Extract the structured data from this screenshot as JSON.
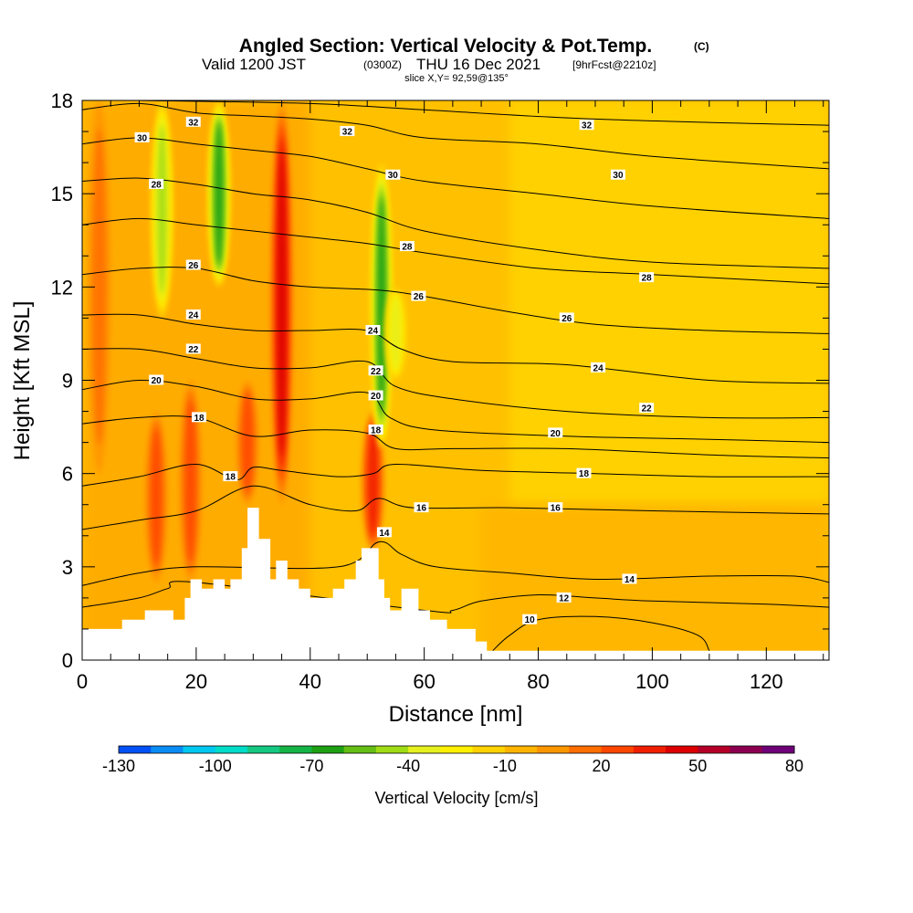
{
  "title": {
    "main": "Angled Section: Vertical Velocity & Pot.Temp.",
    "main_suffix": "(C)",
    "valid_prefix": "Valid 1200 JST",
    "valid_utc": "(0300Z)",
    "valid_date": "THU 16 Dec 2021",
    "forecast": "[9hrFcst@2210z]",
    "slice": "slice X,Y= 92,59@135°"
  },
  "chart_data": {
    "type": "heatmap",
    "xlabel": "Distance [nm]",
    "ylabel": "Height [Kft MSL]",
    "xlim": [
      0,
      131
    ],
    "ylim": [
      0,
      18
    ],
    "x_ticks": [
      0,
      20,
      40,
      60,
      80,
      100,
      120
    ],
    "y_ticks": [
      0,
      3,
      6,
      9,
      12,
      15,
      18
    ],
    "colorbar": {
      "label": "Vertical Velocity [cm/s]",
      "range": [
        -130,
        80
      ],
      "step": 10,
      "tick_values": [
        -130,
        -100,
        -70,
        -40,
        -10,
        20,
        50,
        80
      ],
      "colors": [
        "#0000f5",
        "#0050f5",
        "#0a8cf5",
        "#00c8f0",
        "#00dcc8",
        "#14c882",
        "#14b446",
        "#1ea014",
        "#64be14",
        "#a0dc14",
        "#e6f01e",
        "#fff000",
        "#ffd200",
        "#ffb400",
        "#ff9600",
        "#ff6e00",
        "#ff4600",
        "#f01e00",
        "#dc0000",
        "#b40028",
        "#8c0050",
        "#6e0078",
        "#50008c"
      ]
    },
    "terrain_kft": [
      [
        0,
        1.0
      ],
      [
        7,
        1.0
      ],
      [
        7,
        1.3
      ],
      [
        11,
        1.3
      ],
      [
        11,
        1.6
      ],
      [
        16,
        1.6
      ],
      [
        16,
        1.3
      ],
      [
        18,
        1.3
      ],
      [
        18,
        2.0
      ],
      [
        19,
        2.0
      ],
      [
        19,
        2.6
      ],
      [
        21,
        2.6
      ],
      [
        21,
        2.3
      ],
      [
        23,
        2.3
      ],
      [
        23,
        2.6
      ],
      [
        25,
        2.6
      ],
      [
        25,
        2.3
      ],
      [
        26,
        2.3
      ],
      [
        26,
        2.6
      ],
      [
        28,
        2.6
      ],
      [
        28,
        3.6
      ],
      [
        29,
        3.6
      ],
      [
        29,
        4.9
      ],
      [
        31,
        4.9
      ],
      [
        31,
        3.9
      ],
      [
        33,
        3.9
      ],
      [
        33,
        2.6
      ],
      [
        34,
        2.6
      ],
      [
        34,
        3.2
      ],
      [
        36,
        3.2
      ],
      [
        36,
        2.6
      ],
      [
        38,
        2.6
      ],
      [
        38,
        2.3
      ],
      [
        40,
        2.3
      ],
      [
        40,
        2.0
      ],
      [
        44,
        2.0
      ],
      [
        44,
        2.3
      ],
      [
        46,
        2.3
      ],
      [
        46,
        2.6
      ],
      [
        48,
        2.6
      ],
      [
        48,
        3.2
      ],
      [
        49,
        3.2
      ],
      [
        49,
        3.6
      ],
      [
        52,
        3.6
      ],
      [
        52,
        2.6
      ],
      [
        53,
        2.6
      ],
      [
        53,
        2.0
      ],
      [
        54,
        2.0
      ],
      [
        54,
        1.6
      ],
      [
        56,
        1.6
      ],
      [
        56,
        2.3
      ],
      [
        59,
        2.3
      ],
      [
        59,
        1.6
      ],
      [
        61,
        1.6
      ],
      [
        61,
        1.3
      ],
      [
        64,
        1.3
      ],
      [
        64,
        1.0
      ],
      [
        69,
        1.0
      ],
      [
        69,
        0.6
      ],
      [
        71,
        0.6
      ],
      [
        71,
        0.3
      ],
      [
        131,
        0.3
      ]
    ],
    "updraft_bands": [
      {
        "x": 13,
        "top": 8,
        "bottom": 2.5,
        "strength": 30
      },
      {
        "x": 19,
        "top": 9,
        "bottom": 2.5,
        "strength": 25
      },
      {
        "x": 29,
        "top": 9,
        "bottom": 5,
        "strength": 30
      },
      {
        "x": 35,
        "top": 18,
        "bottom": 5,
        "strength": 45
      },
      {
        "x": 51,
        "top": 8,
        "bottom": 3.5,
        "strength": 35
      },
      {
        "x": 3,
        "top": 18,
        "bottom": 6,
        "strength": 20
      }
    ],
    "downdraft_bands": [
      {
        "x": 14,
        "top": 18,
        "bottom": 11,
        "strength": -40
      },
      {
        "x": 24,
        "top": 18,
        "bottom": 12,
        "strength": -55
      },
      {
        "x": 52.5,
        "top": 16,
        "bottom": 6.8,
        "strength": -60
      },
      {
        "x": 55,
        "top": 12,
        "bottom": 9,
        "strength": -30
      }
    ],
    "theta_contours": [
      {
        "value": 10,
        "label": "10",
        "points": [
          [
            72,
            0.3
          ],
          [
            75,
            0.8
          ],
          [
            80,
            1.3
          ],
          [
            90,
            1.4
          ],
          [
            100,
            1.2
          ],
          [
            108,
            0.8
          ],
          [
            110,
            0.3
          ]
        ]
      },
      {
        "value": 12,
        "label": "12",
        "points": [
          [
            0,
            1.7
          ],
          [
            10,
            2.0
          ],
          [
            15,
            2.3
          ],
          [
            20,
            2.5
          ],
          [
            60,
            1.6
          ],
          [
            65,
            1.6
          ],
          [
            70,
            1.9
          ],
          [
            80,
            2.1
          ],
          [
            90,
            2.0
          ],
          [
            100,
            1.9
          ],
          [
            120,
            1.8
          ],
          [
            131,
            1.7
          ]
        ]
      },
      {
        "value": 14,
        "label": "14",
        "points": [
          [
            0,
            2.4
          ],
          [
            10,
            2.8
          ],
          [
            20,
            3.0
          ],
          [
            45,
            3.0
          ],
          [
            52,
            3.8
          ],
          [
            56,
            3.4
          ],
          [
            62,
            3.0
          ],
          [
            75,
            2.8
          ],
          [
            90,
            2.6
          ],
          [
            110,
            2.7
          ],
          [
            125,
            2.7
          ],
          [
            131,
            2.5
          ]
        ]
      },
      {
        "value": 16,
        "label": "16",
        "points": [
          [
            0,
            4.2
          ],
          [
            10,
            4.5
          ],
          [
            20,
            4.8
          ],
          [
            30,
            5.6
          ],
          [
            40,
            5.0
          ],
          [
            48,
            4.8
          ],
          [
            52,
            5.2
          ],
          [
            58,
            4.9
          ],
          [
            75,
            4.9
          ],
          [
            100,
            4.8
          ],
          [
            131,
            4.7
          ]
        ]
      },
      {
        "value": 18,
        "label": "18",
        "points": [
          [
            0,
            5.6
          ],
          [
            10,
            5.9
          ],
          [
            20,
            6.3
          ],
          [
            27,
            5.8
          ],
          [
            30,
            6.2
          ],
          [
            35,
            6.1
          ],
          [
            45,
            5.9
          ],
          [
            51,
            6.0
          ],
          [
            55,
            6.3
          ],
          [
            70,
            6.1
          ],
          [
            90,
            6.0
          ],
          [
            110,
            5.9
          ],
          [
            131,
            5.9
          ]
        ]
      },
      {
        "value": 18,
        "label": "18",
        "points": [
          [
            0,
            7.6
          ],
          [
            10,
            7.8
          ],
          [
            20,
            7.8
          ],
          [
            30,
            7.2
          ],
          [
            40,
            7.4
          ],
          [
            50,
            7.3
          ],
          [
            55,
            6.8
          ],
          [
            65,
            6.8
          ],
          [
            85,
            6.8
          ],
          [
            110,
            6.6
          ],
          [
            131,
            6.5
          ]
        ]
      },
      {
        "value": 20,
        "label": "20",
        "points": [
          [
            0,
            8.7
          ],
          [
            10,
            9.0
          ],
          [
            20,
            8.8
          ],
          [
            30,
            8.4
          ],
          [
            40,
            8.4
          ],
          [
            50,
            8.6
          ],
          [
            54,
            7.8
          ],
          [
            62,
            7.4
          ],
          [
            85,
            7.2
          ],
          [
            110,
            7.1
          ],
          [
            131,
            7.0
          ]
        ]
      },
      {
        "value": 22,
        "label": "22",
        "points": [
          [
            0,
            10.0
          ],
          [
            10,
            10.0
          ],
          [
            20,
            9.7
          ],
          [
            30,
            9.4
          ],
          [
            40,
            9.4
          ],
          [
            50,
            9.6
          ],
          [
            55,
            8.8
          ],
          [
            65,
            8.4
          ],
          [
            85,
            8.0
          ],
          [
            110,
            7.8
          ],
          [
            131,
            7.8
          ]
        ]
      },
      {
        "value": 24,
        "label": "24",
        "points": [
          [
            0,
            11.1
          ],
          [
            10,
            11.1
          ],
          [
            20,
            10.8
          ],
          [
            30,
            10.6
          ],
          [
            40,
            10.6
          ],
          [
            50,
            10.6
          ],
          [
            56,
            10.0
          ],
          [
            65,
            9.6
          ],
          [
            85,
            9.5
          ],
          [
            110,
            9.0
          ],
          [
            131,
            8.9
          ]
        ]
      },
      {
        "value": 26,
        "label": "26",
        "points": [
          [
            0,
            12.4
          ],
          [
            10,
            12.6
          ],
          [
            20,
            12.6
          ],
          [
            30,
            12.2
          ],
          [
            40,
            12.0
          ],
          [
            52,
            11.9
          ],
          [
            60,
            11.7
          ],
          [
            75,
            11.2
          ],
          [
            90,
            10.8
          ],
          [
            110,
            10.6
          ],
          [
            131,
            10.5
          ]
        ]
      },
      {
        "value": 26,
        "label": "26",
        "points": [
          [
            0,
            14.0
          ],
          [
            10,
            14.2
          ],
          [
            20,
            14.0
          ],
          [
            30,
            13.8
          ],
          [
            40,
            13.6
          ],
          [
            50,
            13.4
          ],
          [
            60,
            13.1
          ],
          [
            80,
            12.6
          ],
          [
            100,
            12.4
          ],
          [
            131,
            12.1
          ]
        ]
      },
      {
        "value": 28,
        "label": "28",
        "points": [
          [
            0,
            15.4
          ],
          [
            10,
            15.5
          ],
          [
            20,
            15.3
          ],
          [
            30,
            15.0
          ],
          [
            40,
            14.8
          ],
          [
            50,
            14.4
          ],
          [
            60,
            13.8
          ],
          [
            80,
            13.2
          ],
          [
            100,
            12.8
          ],
          [
            131,
            12.6
          ]
        ]
      },
      {
        "value": 30,
        "label": "30",
        "points": [
          [
            0,
            16.6
          ],
          [
            10,
            16.8
          ],
          [
            20,
            16.6
          ],
          [
            30,
            16.4
          ],
          [
            40,
            16.2
          ],
          [
            50,
            15.8
          ],
          [
            60,
            15.4
          ],
          [
            80,
            15.0
          ],
          [
            100,
            14.6
          ],
          [
            131,
            14.2
          ]
        ]
      },
      {
        "value": 32,
        "label": "32",
        "points": [
          [
            0,
            17.7
          ],
          [
            10,
            17.9
          ],
          [
            20,
            17.6
          ],
          [
            30,
            17.5
          ],
          [
            40,
            17.4
          ],
          [
            50,
            17.2
          ],
          [
            60,
            16.8
          ],
          [
            80,
            16.6
          ],
          [
            100,
            16.2
          ],
          [
            131,
            15.8
          ]
        ]
      },
      {
        "value": 32,
        "label": "32",
        "points": [
          [
            10,
            18.0
          ],
          [
            40,
            17.9
          ],
          [
            60,
            17.7
          ],
          [
            90,
            17.4
          ],
          [
            131,
            17.2
          ]
        ]
      }
    ],
    "contour_labels": [
      {
        "text": "32",
        "x": 19.5,
        "y": 17.3
      },
      {
        "text": "30",
        "x": 10.5,
        "y": 16.8
      },
      {
        "text": "28",
        "x": 13,
        "y": 15.3
      },
      {
        "text": "26",
        "x": 19.5,
        "y": 12.7
      },
      {
        "text": "24",
        "x": 19.5,
        "y": 11.1
      },
      {
        "text": "22",
        "x": 19.5,
        "y": 10.0
      },
      {
        "text": "20",
        "x": 13,
        "y": 9.0
      },
      {
        "text": "18",
        "x": 20.5,
        "y": 7.8
      },
      {
        "text": "18",
        "x": 26,
        "y": 5.9
      },
      {
        "text": "32",
        "x": 46.5,
        "y": 17.0
      },
      {
        "text": "30",
        "x": 54.5,
        "y": 15.6
      },
      {
        "text": "28",
        "x": 57,
        "y": 13.3
      },
      {
        "text": "26",
        "x": 59,
        "y": 11.7
      },
      {
        "text": "24",
        "x": 51,
        "y": 10.6
      },
      {
        "text": "22",
        "x": 51.5,
        "y": 9.3
      },
      {
        "text": "20",
        "x": 51.5,
        "y": 8.5
      },
      {
        "text": "18",
        "x": 51.5,
        "y": 7.4
      },
      {
        "text": "16",
        "x": 59.5,
        "y": 4.9
      },
      {
        "text": "14",
        "x": 53,
        "y": 4.1
      },
      {
        "text": "32",
        "x": 88.5,
        "y": 17.2
      },
      {
        "text": "30",
        "x": 94,
        "y": 15.6
      },
      {
        "text": "28",
        "x": 99,
        "y": 12.3
      },
      {
        "text": "26",
        "x": 85,
        "y": 11.0
      },
      {
        "text": "24",
        "x": 90.5,
        "y": 9.4
      },
      {
        "text": "22",
        "x": 99,
        "y": 8.1
      },
      {
        "text": "20",
        "x": 83,
        "y": 7.3
      },
      {
        "text": "18",
        "x": 88,
        "y": 6.0
      },
      {
        "text": "16",
        "x": 83,
        "y": 4.9
      },
      {
        "text": "14",
        "x": 96,
        "y": 2.6
      },
      {
        "text": "12",
        "x": 84.5,
        "y": 2.0
      },
      {
        "text": "10",
        "x": 78.5,
        "y": 1.3
      }
    ]
  }
}
